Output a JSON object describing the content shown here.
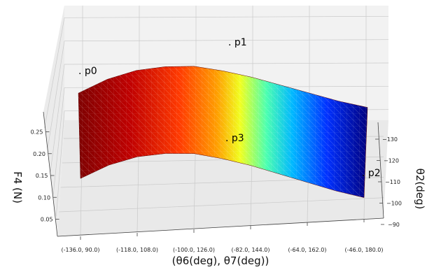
{
  "chart_data": {
    "type": "surface3d",
    "xlabel": "(θ6(deg), θ7(deg))",
    "ylabel": "θ2(deg)",
    "zlabel": "F4 (N)",
    "x_ticks": [
      "(-136.0, 90.0)",
      "(-118.0, 108.0)",
      "(-100.0, 126.0)",
      "(-82.0, 144.0)",
      "(-64.0, 162.0)",
      "(-46.0, 180.0)"
    ],
    "y_ticks": [
      "-90",
      "-100",
      "-110",
      "-120",
      "-130"
    ],
    "z_ticks": [
      "0.05",
      "0.10",
      "0.15",
      "0.20",
      "0.25"
    ],
    "xlim": [
      0,
      5
    ],
    "ylim": [
      -90,
      -130
    ],
    "zlim": [
      0.03,
      0.27
    ],
    "colormap": "jet",
    "profile": [
      {
        "x": 0.0,
        "z": 0.19
      },
      {
        "x": 0.5,
        "z": 0.225
      },
      {
        "x": 1.0,
        "z": 0.245
      },
      {
        "x": 1.5,
        "z": 0.25
      },
      {
        "x": 2.0,
        "z": 0.245
      },
      {
        "x": 2.5,
        "z": 0.225
      },
      {
        "x": 3.0,
        "z": 0.2
      },
      {
        "x": 3.5,
        "z": 0.17
      },
      {
        "x": 4.0,
        "z": 0.14
      },
      {
        "x": 4.5,
        "z": 0.11
      },
      {
        "x": 5.0,
        "z": 0.085
      }
    ],
    "annotations": [
      {
        "label": ". p0"
      },
      {
        "label": ". p1"
      },
      {
        "label": ". p2"
      },
      {
        "label": ". p3"
      }
    ]
  }
}
